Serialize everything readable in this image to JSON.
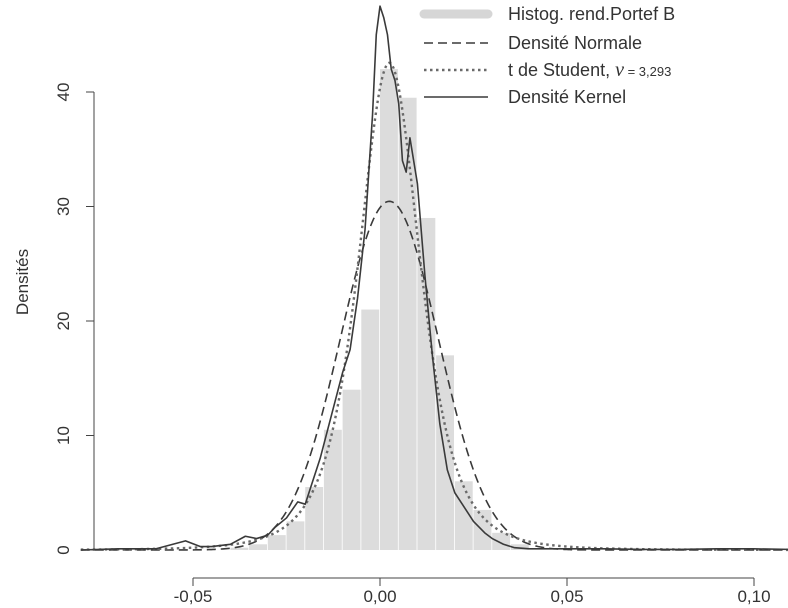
{
  "chart_data": {
    "type": "histogram+density",
    "xlabel": "",
    "ylabel": "Densités",
    "xlim": [
      -0.08,
      0.11
    ],
    "ylim": [
      0,
      47
    ],
    "x_ticks": [
      -0.05,
      0.0,
      0.05,
      0.1
    ],
    "x_tick_labels": [
      "-0,05",
      "0,00",
      "0,05",
      "0,10"
    ],
    "y_ticks": [
      0,
      10,
      20,
      30,
      40
    ],
    "y_tick_labels": [
      "0",
      "10",
      "20",
      "30",
      "40"
    ],
    "grid": false,
    "legend_position": "top-right",
    "legend": [
      {
        "label": "Histog. rend.Portef B",
        "style": "thick-light-gray-bar"
      },
      {
        "label": "Densité Normale",
        "style": "dashed"
      },
      {
        "label_prefix": "t de Student, ",
        "nu_symbol": "ν",
        "nu_value": " = 3,293",
        "style": "dotted"
      },
      {
        "label": "Densité Kernel",
        "style": "solid"
      }
    ],
    "histogram": {
      "bin_width": 0.005,
      "bins_start": [
        -0.04,
        -0.035,
        -0.03,
        -0.025,
        -0.02,
        -0.015,
        -0.01,
        -0.005,
        0.0,
        0.005,
        0.01,
        0.015,
        0.02,
        0.025,
        0.03,
        0.035
      ],
      "counts": [
        0.2,
        0.5,
        1.3,
        2.5,
        5.5,
        10.5,
        14.0,
        21.0,
        42.0,
        39.5,
        29.0,
        17.0,
        6.0,
        3.5,
        1.5,
        0.5
      ]
    },
    "normal_density": {
      "mean": 0.0025,
      "sd": 0.0131
    },
    "student_t_density": {
      "df": 3.293,
      "location": 0.0025,
      "scale": 0.0087
    },
    "kernel_density": {
      "x": [
        -0.08,
        -0.07,
        -0.06,
        -0.052,
        -0.048,
        -0.045,
        -0.04,
        -0.036,
        -0.033,
        -0.03,
        -0.028,
        -0.025,
        -0.022,
        -0.02,
        -0.018,
        -0.016,
        -0.014,
        -0.012,
        -0.01,
        -0.008,
        -0.006,
        -0.004,
        -0.002,
        -0.001,
        0.0,
        0.001,
        0.002,
        0.003,
        0.004,
        0.005,
        0.006,
        0.007,
        0.008,
        0.01,
        0.012,
        0.014,
        0.016,
        0.018,
        0.02,
        0.022,
        0.025,
        0.028,
        0.03,
        0.033,
        0.036,
        0.04,
        0.045,
        0.05,
        0.06,
        0.07,
        0.08,
        0.09,
        0.1,
        0.11
      ],
      "y": [
        0,
        0.1,
        0.1,
        0.8,
        0.3,
        0.3,
        0.5,
        1.2,
        1.0,
        1.3,
        2.0,
        2.8,
        4.2,
        4.0,
        6.0,
        8.0,
        10.5,
        13.0,
        15.5,
        17.5,
        22.0,
        28.0,
        38.0,
        45.0,
        47.5,
        46.5,
        45.0,
        42.0,
        41.0,
        39.0,
        34.0,
        33.0,
        36.0,
        32.0,
        24.0,
        17.0,
        11.0,
        7.0,
        5.0,
        4.0,
        2.5,
        1.5,
        1.0,
        0.5,
        0.2,
        0.1,
        0.1,
        0.1,
        0.1,
        0.05,
        0.05,
        0.1,
        0.1,
        0.05
      ]
    }
  }
}
